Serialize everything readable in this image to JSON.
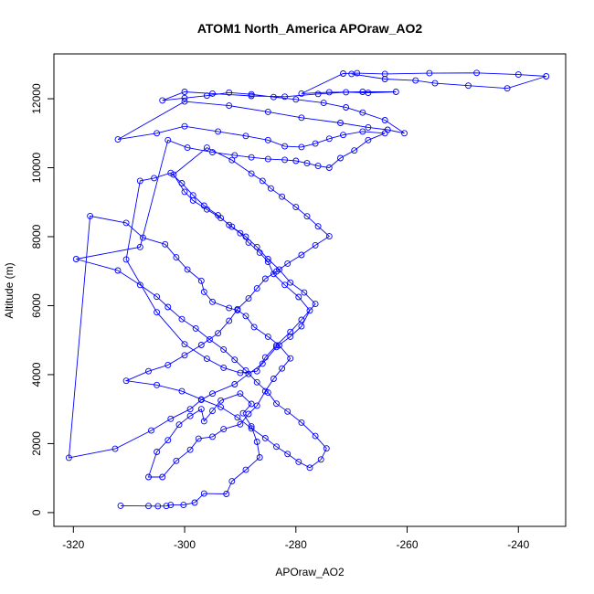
{
  "chart_data": {
    "type": "line",
    "title": "ATOM1 North_America APOraw_AO2",
    "xlabel": "APOraw_AO2",
    "ylabel": "Altitude (m)",
    "xlim": [
      -323.5,
      -231.5
    ],
    "ylim": [
      -400,
      13300
    ],
    "xticks": [
      -320,
      -300,
      -280,
      -260,
      -240
    ],
    "yticks": [
      0,
      2000,
      4000,
      6000,
      8000,
      10000,
      12000
    ],
    "grid": false,
    "legend": "none",
    "marker": "open-circle",
    "line_color": "#0000ff",
    "series": [
      {
        "x": [
          -311.5,
          -306.5,
          -304.8,
          -303.3,
          -302.5,
          -300.2,
          -298.2,
          -296.5,
          -292.5,
          -291.5,
          -289.0,
          -286.5,
          -287.0,
          -288.0,
          -289.5,
          -288.0,
          -290.0,
          -293.5,
          -295.0,
          -296.5,
          -297.0,
          -299.0,
          -301.0,
          -303.0,
          -305.0,
          -306.5,
          -304.0,
          -301.5,
          -299.0,
          -297.5,
          -295.0,
          -293.0,
          -290.0,
          -288.5,
          -287.0,
          -285.5,
          -284.0,
          -282.5,
          -281.0,
          -283.0,
          -285.0,
          -287.5,
          -289.0,
          -290.5,
          -292.0,
          -295.0,
          -296.5,
          -297.0,
          -299.5,
          -301.5,
          -303.5,
          -307.5,
          -310.5,
          -317.0,
          -320.8,
          -312.5,
          -306.0,
          -302.5,
          -299.0,
          -297.0,
          -295.0,
          -291.0,
          -288.5,
          -286.0,
          -283.5,
          -281.0,
          -279.0,
          -277.5,
          -279.5,
          -282.0,
          -284.0,
          -285.0,
          -286.5,
          -288.5,
          -290.0,
          -292.0,
          -294.0,
          -296.5,
          -298.5,
          -300.5,
          -302.5,
          -305.5,
          -308.0,
          -310.5,
          -305.0,
          -300.0,
          -296.0,
          -293.0,
          -290.0,
          -287.0,
          -285.5,
          -283.5,
          -281.0,
          -279.0,
          -276.5,
          -278.5,
          -281.0,
          -283.0,
          -285.0,
          -287.0,
          -289.0,
          -291.5,
          -293.5,
          -296.0,
          -298.5,
          -300.0,
          -302.0,
          -296.0,
          -291.5,
          -288.0,
          -286.0,
          -284.5,
          -282.5,
          -280.0,
          -278.0,
          -276.0,
          -274.0,
          -276.5,
          -279.0,
          -281.5,
          -283.5,
          -285.5,
          -287.0,
          -288.5,
          -290.5,
          -292.0,
          -294.0,
          -297.0,
          -300.0,
          -303.0,
          -306.5,
          -310.5,
          -305.0,
          -300.5,
          -297.0,
          -293.5,
          -290.5,
          -288.0,
          -285.5,
          -283.5,
          -281.5,
          -279.5,
          -277.5,
          -275.5,
          -274.5,
          -276.5,
          -279.0,
          -281.5,
          -283.5,
          -285.0,
          -287.0,
          -289.0,
          -291.0,
          -293.0,
          -295.5,
          -298.0,
          -300.5,
          -303.0,
          -305.0,
          -308.0,
          -312.0,
          -319.5,
          -308.0,
          -303.0,
          -299.5,
          -295.0,
          -291.0,
          -288.0,
          -285.0,
          -282.0,
          -280.0,
          -278.0,
          -276.0,
          -274.0,
          -272.0,
          -269.5,
          -267.0,
          -264.0,
          -268.0,
          -271.5,
          -274.0,
          -276.5,
          -279.0,
          -282.0,
          -285.0,
          -289.0,
          -294.0,
          -300.0,
          -305.0,
          -312.0,
          -300.0,
          -292.0,
          -285.0,
          -279.0,
          -272.0,
          -267.0,
          -263.5,
          -260.5,
          -264.0,
          -268.0,
          -271.0,
          -275.0,
          -280.0,
          -284.0,
          -288.0,
          -292.0,
          -296.0,
          -300.0,
          -304.0,
          -300.0,
          -295.0,
          -288.0,
          -282.0,
          -276.0,
          -271.0,
          -267.0,
          -262.0,
          -268.0,
          -274.0,
          -279.0,
          -271.5,
          -269.0,
          -264.0,
          -256.0,
          -247.5,
          -240.0,
          -235.0,
          -242.0,
          -249.0,
          -255.0,
          -258.5,
          -264.0,
          -270.0
        ],
        "y": [
          200,
          190,
          185,
          190,
          220,
          220,
          290,
          550,
          540,
          910,
          1240,
          1600,
          2050,
          2500,
          2880,
          3150,
          3450,
          3250,
          2950,
          2650,
          3000,
          2800,
          2550,
          2100,
          1760,
          1030,
          1030,
          1500,
          1820,
          2140,
          2200,
          2420,
          2560,
          2860,
          3100,
          3520,
          3880,
          4180,
          4470,
          4850,
          5100,
          5380,
          5700,
          5870,
          5930,
          6110,
          6400,
          6720,
          7050,
          7400,
          7780,
          7970,
          8400,
          8600,
          1590,
          1850,
          2380,
          2720,
          3000,
          3270,
          3450,
          3720,
          4020,
          4320,
          4800,
          5100,
          5400,
          5860,
          6250,
          6600,
          6920,
          7270,
          7540,
          7830,
          8100,
          8340,
          8620,
          8900,
          9200,
          9550,
          9850,
          9700,
          9620,
          7340,
          5810,
          4880,
          4460,
          4200,
          4050,
          4100,
          4500,
          4850,
          5240,
          5590,
          6050,
          6380,
          6670,
          7050,
          7350,
          7700,
          8000,
          8290,
          8540,
          8790,
          9050,
          9300,
          9800,
          10580,
          10220,
          9830,
          9620,
          9400,
          9160,
          8860,
          8590,
          8300,
          8010,
          7750,
          7470,
          7220,
          6990,
          6780,
          6500,
          6210,
          5900,
          5560,
          5200,
          4860,
          4560,
          4280,
          4100,
          3820,
          3700,
          3520,
          3280,
          3060,
          2760,
          2440,
          2160,
          1910,
          1700,
          1470,
          1300,
          1540,
          1860,
          2220,
          2610,
          2930,
          3160,
          3480,
          3780,
          4120,
          4430,
          4730,
          5020,
          5340,
          5610,
          5960,
          6260,
          6600,
          7020,
          7350,
          7700,
          10800,
          10580,
          10450,
          10360,
          10300,
          10250,
          10230,
          10200,
          10130,
          10050,
          10000,
          10280,
          10500,
          10800,
          11000,
          11050,
          10950,
          10840,
          10700,
          10600,
          10620,
          10800,
          10920,
          11050,
          11200,
          11000,
          10820,
          11920,
          11800,
          11620,
          11450,
          11300,
          11170,
          11100,
          11000,
          11380,
          11600,
          11750,
          11880,
          11980,
          12050,
          12130,
          12180,
          12090,
          12020,
          11950,
          12200,
          12150,
          12080,
          12060,
          12140,
          12190,
          12170,
          12200,
          12200,
          12190,
          12150,
          12730,
          12740,
          12720,
          12740,
          12750,
          12700,
          12650,
          12300,
          12380,
          12450,
          12530,
          12570,
          12720
        ]
      }
    ]
  }
}
